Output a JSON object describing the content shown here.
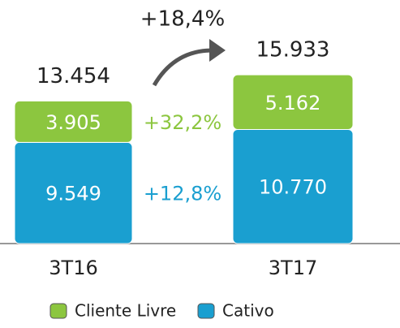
{
  "chart_data": {
    "type": "stacked_bar",
    "categories": [
      "3T16",
      "3T17"
    ],
    "series": [
      {
        "name": "Cativo",
        "color": "#1a9fd0",
        "values": [
          9549,
          10770
        ],
        "value_labels": [
          "9.549",
          "10.770"
        ],
        "growth_label": "+12,8%"
      },
      {
        "name": "Cliente Livre",
        "color": "#8cc63f",
        "values": [
          3905,
          5162
        ],
        "value_labels": [
          "3.905",
          "5.162"
        ],
        "growth_label": "+32,2%"
      }
    ],
    "totals": {
      "values": [
        13454,
        15933
      ],
      "value_labels": [
        "13.454",
        "15.933"
      ],
      "growth_label": "+18,4%"
    },
    "ylim": [
      0,
      16000
    ]
  }
}
